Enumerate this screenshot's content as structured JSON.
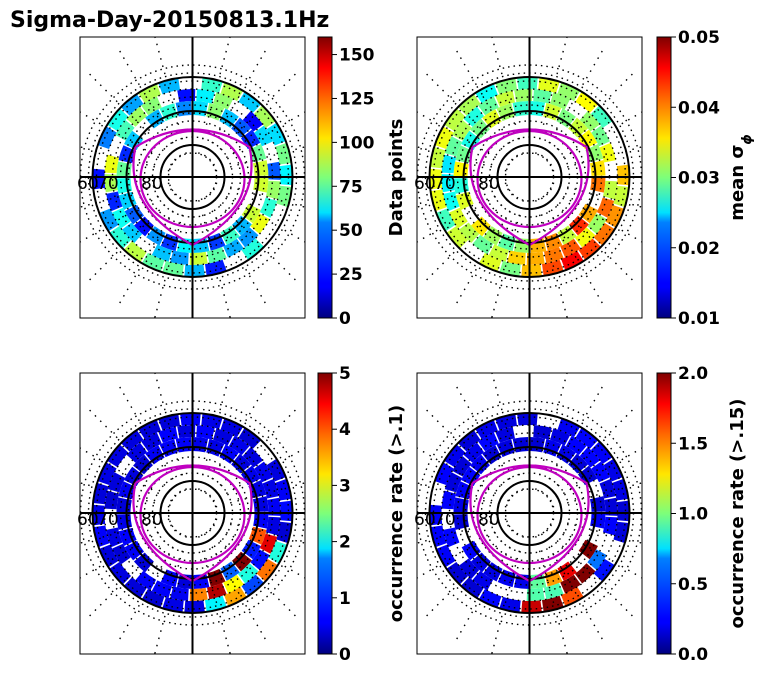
{
  "title": "Sigma-Day-20150813.1Hz",
  "chart_data": [
    {
      "type": "heatmap",
      "projection": "polar",
      "lat_labels": [
        "60",
        "70",
        "80"
      ],
      "colormap": "jet",
      "colorbar_label": "Data points",
      "clim": [
        0,
        160
      ],
      "colorbar_ticks": [
        "0",
        "25",
        "50",
        "75",
        "100",
        "125",
        "150"
      ],
      "colorbar_tick_values": [
        0,
        25,
        50,
        75,
        100,
        125,
        150
      ]
    },
    {
      "type": "heatmap",
      "projection": "polar",
      "lat_labels": [
        "60",
        "70",
        "80"
      ],
      "colormap": "jet",
      "colorbar_label": "mean σ",
      "colorbar_label_subscript": "ϕ",
      "clim": [
        0.01,
        0.05
      ],
      "colorbar_ticks": [
        "0.01",
        "0.02",
        "0.03",
        "0.04",
        "0.05"
      ],
      "colorbar_tick_values": [
        0.01,
        0.02,
        0.03,
        0.04,
        0.05
      ]
    },
    {
      "type": "heatmap",
      "projection": "polar",
      "lat_labels": [
        "60",
        "70",
        "80"
      ],
      "colormap": "jet",
      "colorbar_label": "occurrence rate (>.1)",
      "clim": [
        0,
        5
      ],
      "colorbar_ticks": [
        "0",
        "1",
        "2",
        "3",
        "4",
        "5"
      ],
      "colorbar_tick_values": [
        0,
        1,
        2,
        3,
        4,
        5
      ]
    },
    {
      "type": "heatmap",
      "projection": "polar",
      "lat_labels": [
        "60",
        "70",
        "80"
      ],
      "colormap": "jet",
      "colorbar_label": "occurrence rate (>.15)",
      "clim": [
        0,
        2
      ],
      "colorbar_ticks": [
        "0.0",
        "0.5",
        "1.0",
        "1.5",
        "2.0"
      ],
      "colorbar_tick_values": [
        0,
        0.5,
        1.0,
        1.5,
        2.0
      ]
    }
  ]
}
